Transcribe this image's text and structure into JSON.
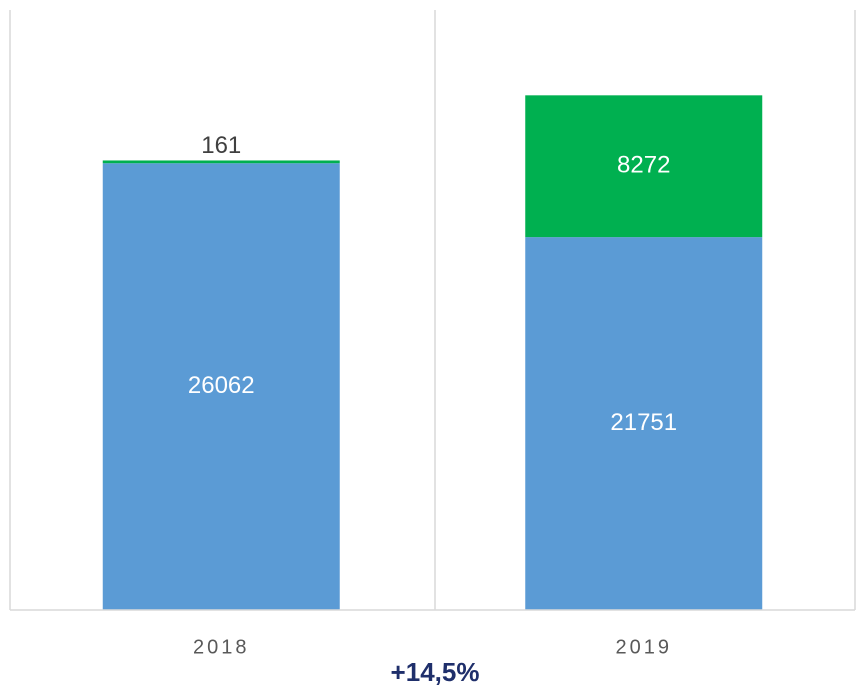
{
  "chart_data": {
    "type": "stacked_bar",
    "categories": [
      "2018",
      "2019"
    ],
    "series": [
      {
        "color": "#5b9bd5",
        "values": [
          26062,
          21751
        ]
      },
      {
        "color": "#00b050",
        "values": [
          161,
          8272
        ]
      }
    ],
    "ylim": [
      0,
      35000
    ],
    "annotation": "+14,5%"
  }
}
